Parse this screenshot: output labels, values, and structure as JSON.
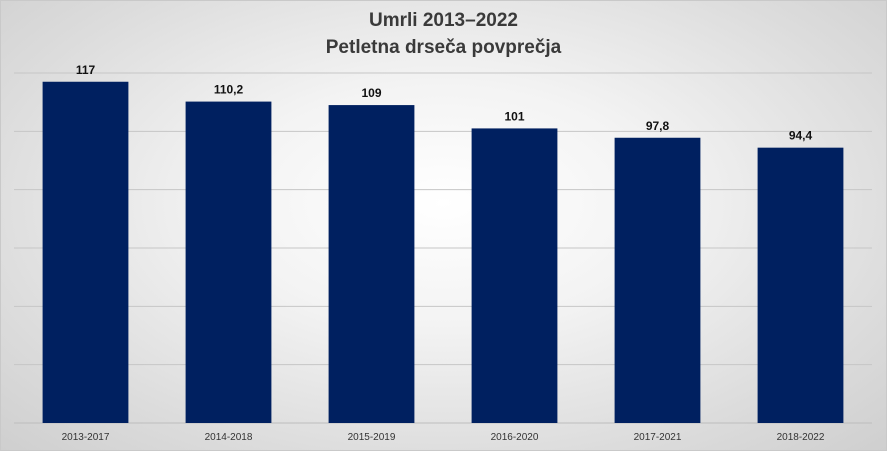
{
  "chart_data": {
    "type": "bar",
    "title": "Umrli 2013–2022",
    "subtitle": "Petletna drseča povprečja",
    "categories": [
      "2013-2017",
      "2014-2018",
      "2015-2019",
      "2016-2020",
      "2017-2021",
      "2018-2022"
    ],
    "values": [
      117,
      110.2,
      109,
      101,
      97.8,
      94.4
    ],
    "value_labels": [
      "117",
      "110,2",
      "109",
      "101",
      "97,8",
      "94,4"
    ],
    "ylim": [
      0,
      120
    ],
    "grid": true,
    "bar_color": "#002060",
    "xlabel": "",
    "ylabel": ""
  }
}
